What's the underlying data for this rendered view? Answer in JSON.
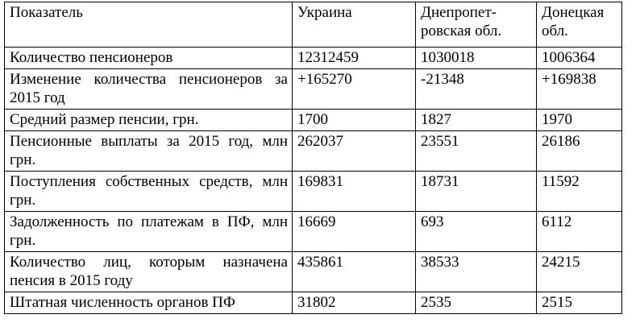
{
  "table": {
    "header": [
      "Показатель",
      "Украина",
      "Днепропет-\nровская обл.",
      "Донецкая обл."
    ],
    "rows": [
      [
        "Количество пенсионеров",
        "12312459",
        "1030018",
        "1006364"
      ],
      [
        "Изменение количества пенсионеров за 2015 год",
        "+165270",
        "-21348",
        "+169838"
      ],
      [
        "Средний размер пенсии, грн.",
        "1700",
        "1827",
        "1970"
      ],
      [
        "Пенсионные выплаты за 2015 год, млн грн.",
        "262037",
        "23551",
        "26186"
      ],
      [
        "Поступления собственных средств, млн грн.",
        "169831",
        "18731",
        "11592"
      ],
      [
        "Задолженность по платежам в ПФ, млн грн.",
        "16669",
        "693",
        "6112"
      ],
      [
        "Количество лиц, которым назначена пенсия в 2015 году",
        "435861",
        "38533",
        "24215"
      ],
      [
        "Штатная численность органов ПФ",
        "31802",
        "2535",
        "2515"
      ]
    ]
  }
}
